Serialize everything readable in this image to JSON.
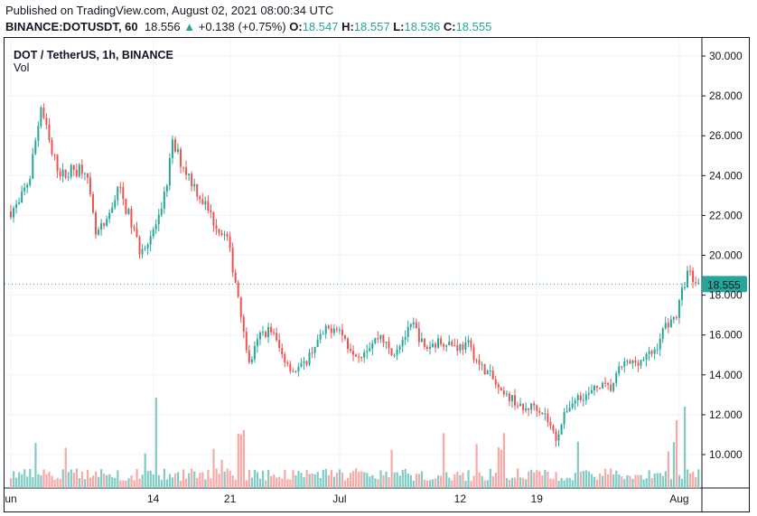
{
  "header": {
    "published": "Published on TradingView.com, August 02, 2021 08:00:34 UTC",
    "symbol": "BINANCE:DOTUSDT, 60",
    "last": "18.556",
    "arrow": "▲",
    "change": "+0.138 (+0.75%)",
    "o_label": "O:",
    "o": "18.547",
    "h_label": "H:",
    "h": "18.557",
    "l_label": "L:",
    "l": "18.536",
    "c_label": "C:",
    "c": "18.555"
  },
  "legend": {
    "title": "DOT / TetherUS, 1h, BINANCE",
    "vol": "Vol"
  },
  "colors": {
    "up": "#26a69a",
    "down": "#ef5350",
    "upVol": "#80cbc4",
    "downVol": "#f7a9a7"
  },
  "chart_data": {
    "type": "candlestick",
    "title": "DOT / TetherUS, 1h, BINANCE",
    "ylim": [
      8.6,
      31
    ],
    "y_ticks": [
      "30.000",
      "28.000",
      "26.000",
      "24.000",
      "22.000",
      "20.000",
      "18.000",
      "16.000",
      "14.000",
      "12.000",
      "10.000"
    ],
    "x_ticks": [
      {
        "label": "un",
        "day": 0
      },
      {
        "label": "14",
        "day": 13
      },
      {
        "label": "21",
        "day": 20
      },
      {
        "label": "Jul",
        "day": 30
      },
      {
        "label": "12",
        "day": 41
      },
      {
        "label": "19",
        "day": 48
      },
      {
        "label": "Aug",
        "day": 61
      }
    ],
    "last_price": "18.555",
    "daily_closes": [
      22.5,
      24,
      27.5,
      25,
      24,
      24.3,
      24.5,
      21,
      21.5,
      23.5,
      22,
      20.3,
      21,
      22,
      25.5,
      24.5,
      23.5,
      22.5,
      21.5,
      20.8,
      18,
      14.5,
      16,
      16.3,
      15,
      14.2,
      14.5,
      15.5,
      16.2,
      16.5,
      15.5,
      15,
      15.5,
      16,
      15,
      15.8,
      16.5,
      15.3,
      15.6,
      15.7,
      15.4,
      15.5,
      14.5,
      14,
      13,
      12.8,
      12.2,
      12.5,
      12,
      10.8,
      12.3,
      12.9,
      13,
      13.5,
      13.3,
      14.5,
      14.6,
      14.8,
      15.2,
      16.5,
      17,
      19.2,
      18.55
    ]
  }
}
